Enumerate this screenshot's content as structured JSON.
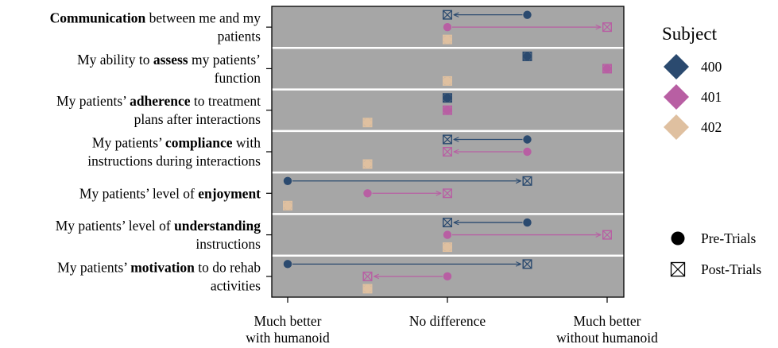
{
  "chart_data": {
    "type": "scatter",
    "x_ticks": [
      {
        "value": -1,
        "lines": [
          "Much better",
          "with humanoid"
        ]
      },
      {
        "value": 0,
        "lines": [
          "No difference"
        ]
      },
      {
        "value": 1,
        "lines": [
          "Much better",
          "without humanoid"
        ]
      }
    ],
    "xlim": [
      -1.1,
      1.1
    ],
    "grid": false,
    "legend_position": "right",
    "legend": {
      "title": "Subject",
      "subjects": [
        {
          "name": "400",
          "color": "#2b4a6f"
        },
        {
          "name": "401",
          "color": "#b85fa3"
        },
        {
          "name": "402",
          "color": "#dfc0a0"
        }
      ],
      "markers": [
        {
          "kind": "pre",
          "label": "Pre-Trials"
        },
        {
          "kind": "post",
          "label": "Post-Trials"
        }
      ]
    },
    "rows": [
      {
        "label_lines": [
          [
            {
              "t": "Communication",
              "b": true
            },
            {
              "t": " between me and my",
              "b": false
            }
          ],
          [
            {
              "t": "patients",
              "b": false
            }
          ]
        ],
        "points": [
          {
            "subject": "400",
            "pre": 0.5,
            "post": 0.0
          },
          {
            "subject": "401",
            "pre": 0.0,
            "post": 1.0
          },
          {
            "subject": "402",
            "pre": 0.0,
            "post": 0.0
          }
        ]
      },
      {
        "label_lines": [
          [
            {
              "t": "My ability to ",
              "b": false
            },
            {
              "t": "assess",
              "b": true
            },
            {
              "t": " my patients’",
              "b": false
            }
          ],
          [
            {
              "t": "function",
              "b": false
            }
          ]
        ],
        "points": [
          {
            "subject": "400",
            "pre": 0.5,
            "post": 0.5
          },
          {
            "subject": "401",
            "pre": 1.0,
            "post": 1.0
          },
          {
            "subject": "402",
            "pre": 0.0,
            "post": 0.0
          }
        ]
      },
      {
        "label_lines": [
          [
            {
              "t": "My patients’ ",
              "b": false
            },
            {
              "t": "adherence",
              "b": true
            },
            {
              "t": " to treatment",
              "b": false
            }
          ],
          [
            {
              "t": "plans after interactions",
              "b": false
            }
          ]
        ],
        "points": [
          {
            "subject": "400",
            "pre": 0.0,
            "post": 0.0
          },
          {
            "subject": "401",
            "pre": 0.0,
            "post": 0.0
          },
          {
            "subject": "402",
            "pre": -0.5,
            "post": -0.5
          }
        ]
      },
      {
        "label_lines": [
          [
            {
              "t": "My patients’ ",
              "b": false
            },
            {
              "t": "compliance",
              "b": true
            },
            {
              "t": " with",
              "b": false
            }
          ],
          [
            {
              "t": "instructions during interactions",
              "b": false
            }
          ]
        ],
        "points": [
          {
            "subject": "400",
            "pre": 0.5,
            "post": 0.0
          },
          {
            "subject": "401",
            "pre": 0.5,
            "post": 0.0
          },
          {
            "subject": "402",
            "pre": -0.5,
            "post": -0.5
          }
        ]
      },
      {
        "label_lines": [
          [
            {
              "t": "My patients’ level of ",
              "b": false
            },
            {
              "t": "enjoyment",
              "b": true
            }
          ]
        ],
        "points": [
          {
            "subject": "400",
            "pre": -1.0,
            "post": 0.5
          },
          {
            "subject": "401",
            "pre": -0.5,
            "post": 0.0
          },
          {
            "subject": "402",
            "pre": -1.0,
            "post": -1.0
          }
        ]
      },
      {
        "label_lines": [
          [
            {
              "t": "My patients’ level of ",
              "b": false
            },
            {
              "t": "understanding",
              "b": true
            }
          ],
          [
            {
              "t": "instructions",
              "b": false
            }
          ]
        ],
        "points": [
          {
            "subject": "400",
            "pre": 0.5,
            "post": 0.0
          },
          {
            "subject": "401",
            "pre": 0.0,
            "post": 1.0
          },
          {
            "subject": "402",
            "pre": 0.0,
            "post": 0.0
          }
        ]
      },
      {
        "label_lines": [
          [
            {
              "t": "My patients’ ",
              "b": false
            },
            {
              "t": "motivation",
              "b": true
            },
            {
              "t": " to do rehab",
              "b": false
            }
          ],
          [
            {
              "t": "activities",
              "b": false
            }
          ]
        ],
        "points": [
          {
            "subject": "400",
            "pre": -1.0,
            "post": 0.5
          },
          {
            "subject": "401",
            "pre": 0.0,
            "post": -0.5
          },
          {
            "subject": "402",
            "pre": -0.5,
            "post": -0.5
          }
        ]
      }
    ]
  }
}
